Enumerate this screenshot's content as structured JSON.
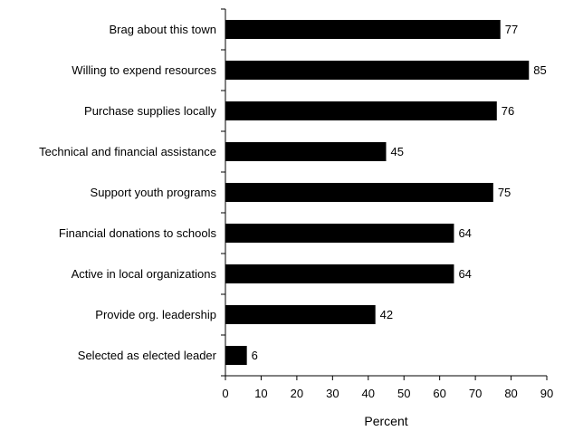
{
  "chart_data": {
    "type": "bar",
    "orientation": "horizontal",
    "categories": [
      "Brag about this town",
      "Willing to expend resources",
      "Purchase supplies locally",
      "Technical and financial assistance",
      "Support youth programs",
      "Financial donations to schools",
      "Active in local organizations",
      "Provide org. leadership",
      "Selected as elected leader"
    ],
    "values": [
      77,
      85,
      76,
      45,
      75,
      64,
      64,
      42,
      6
    ],
    "data_labels": [
      "77",
      "85",
      "76",
      "45",
      "75",
      "64",
      "64",
      "42",
      "6"
    ],
    "xlabel": "Percent",
    "ylabel": "",
    "title": "",
    "xlim": [
      0,
      90
    ],
    "xticks": [
      "0",
      "10",
      "20",
      "30",
      "40",
      "50",
      "60",
      "70",
      "80",
      "90"
    ],
    "grid": false,
    "bar_color": "#000000"
  }
}
